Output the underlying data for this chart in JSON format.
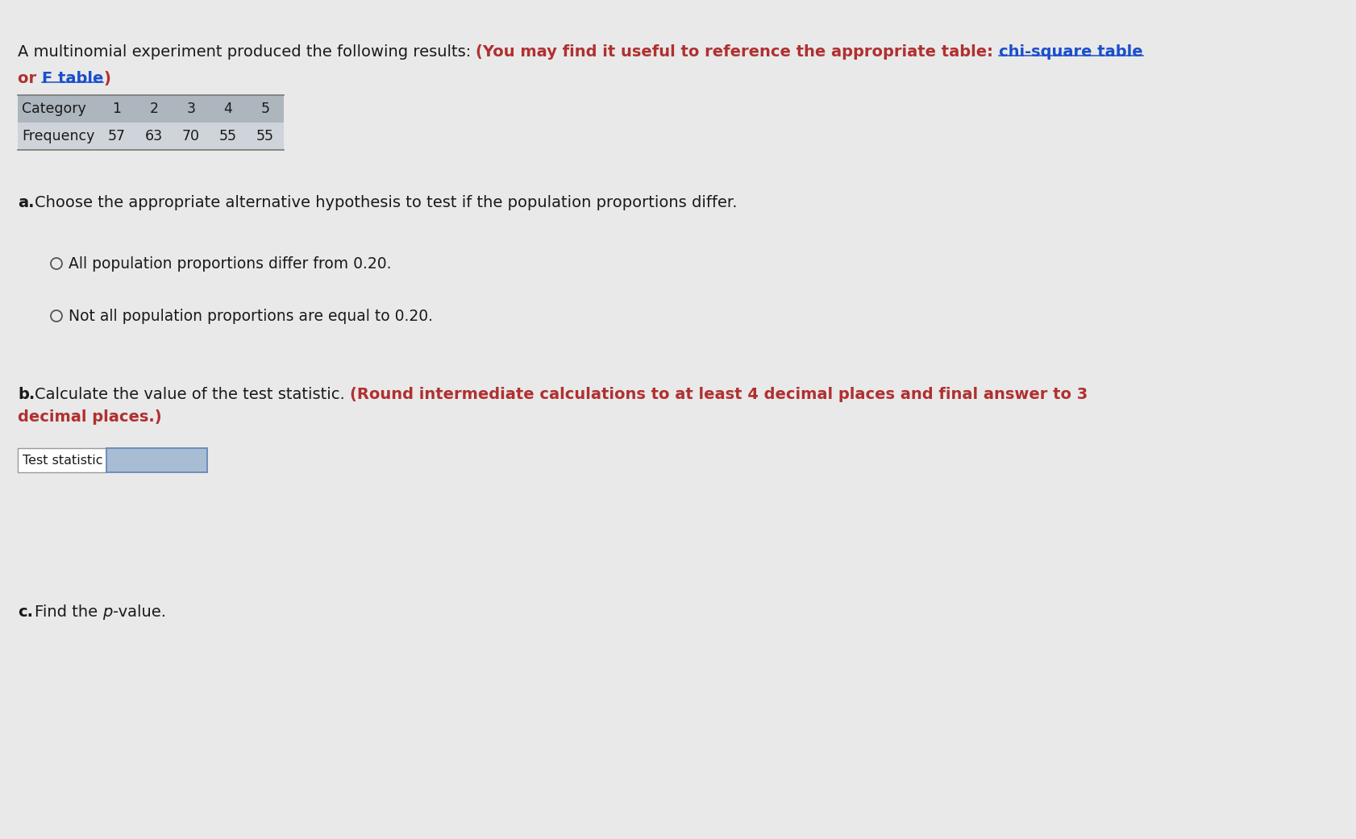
{
  "bg_color": "#e9e9e9",
  "title_normal": "A multinomial experiment produced the following results: ",
  "title_bold_red": "(You may find it useful to reference the appropriate table: ",
  "link1": "chi-square table",
  "link_mid": "or ",
  "link2": "F table",
  "title_end": ")",
  "table_headers": [
    "Category",
    "1",
    "2",
    "3",
    "4",
    "5"
  ],
  "table_row": [
    "Frequency",
    "57",
    "63",
    "70",
    "55",
    "55"
  ],
  "table_header_bg": "#adb5bd",
  "table_row_bg": "#ced4da",
  "part_a_text": "Choose the appropriate alternative hypothesis to test if the population proportions differ.",
  "option1": "All population proportions differ from 0.20.",
  "option2": "Not all population proportions are equal to 0.20.",
  "part_b_normal": "Calculate the value of the test statistic. ",
  "part_b_bold_red_1": "(Round intermediate calculations to at least 4 decimal places and final answer to 3",
  "part_b_bold_red_2": "decimal places.)",
  "test_stat_label": "Test statistic",
  "input_box_color": "#a8bcd4",
  "input_box_border": "#6688bb",
  "part_c_pre": "Find the ",
  "part_c_italic": "p",
  "part_c_post": "-value.",
  "normal_text_color": "#1a1a1a",
  "red_bold_color": "#b03030",
  "link_color": "#1a4fcc",
  "fs_main": 14.0,
  "fs_table": 12.5,
  "fs_options": 13.5,
  "fs_label": 11.5
}
